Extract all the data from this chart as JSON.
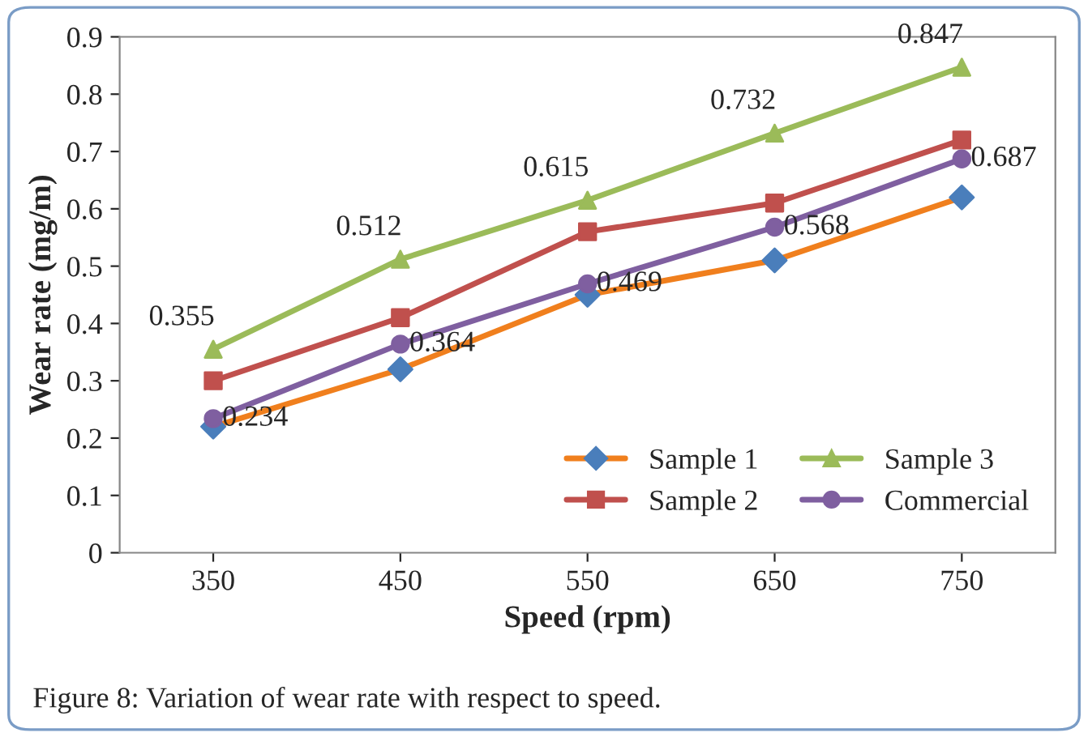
{
  "chart_data": {
    "type": "line",
    "xlabel": "Speed (rpm)",
    "ylabel": "Wear rate (mg/m)",
    "categories": [
      "350",
      "450",
      "550",
      "650",
      "750"
    ],
    "series": [
      {
        "name": "Sample 1",
        "color": "#f07f1d",
        "colors": [
          "#4a7ebb",
          "#4a7ebb",
          "#4a7ebb",
          "#4a7ebb",
          "#4a7ebb"
        ],
        "marker": "diamond",
        "values": [
          0.22,
          0.32,
          0.45,
          0.51,
          0.62
        ]
      },
      {
        "name": "Sample 2",
        "color": "#c0504d",
        "marker": "square",
        "values": [
          0.3,
          0.41,
          0.56,
          0.61,
          0.72
        ]
      },
      {
        "name": "Sample 3",
        "color": "#9bbb59",
        "marker": "triangle",
        "values": [
          0.355,
          0.512,
          0.615,
          0.732,
          0.847
        ],
        "value_labels": [
          "0.355",
          "0.512",
          "0.615",
          "0.732",
          "0.847"
        ]
      },
      {
        "name": "Commercial",
        "color": "#7f5fa0",
        "marker": "circle",
        "values": [
          0.234,
          0.364,
          0.469,
          0.568,
          0.687
        ],
        "value_labels": [
          "0.234",
          "0.364",
          "0.469",
          "0.568",
          "0.687"
        ]
      }
    ],
    "ylim": [
      0,
      0.9
    ],
    "yticks": [
      {
        "value": 0,
        "label": "0"
      },
      0.1,
      0.2,
      0.3,
      0.4,
      0.5,
      0.6,
      0.7,
      0.8,
      0.9
    ],
    "grid": false,
    "legend": "bottom right",
    "line_style": "solid",
    "annotations": [
      "Figure 8: Variation of wear rate with respect to speed."
    ]
  }
}
